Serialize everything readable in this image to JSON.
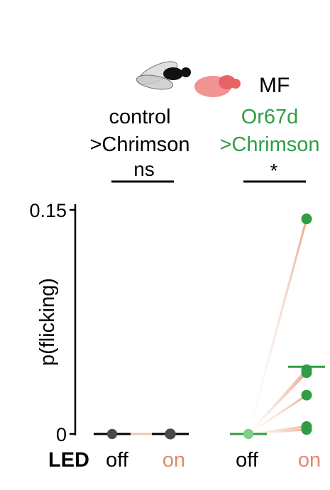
{
  "legend": {
    "label": "MF",
    "male_fly_icon": "black-fly-icon",
    "female_fly_icon": "red-fly-icon"
  },
  "groups": [
    {
      "line1": "control",
      "line2": ">Chrimson",
      "significance": "ns",
      "color": "#000000",
      "marker_color": "#4a4a4a"
    },
    {
      "line1": "Or67d",
      "line2": ">Chrimson",
      "significance": "*",
      "color": "#2e9e44",
      "marker_color": "#2e9e44"
    }
  ],
  "led_label": "LED",
  "conditions": [
    {
      "label": "off",
      "color": "#000000"
    },
    {
      "label": "on",
      "color": "#e08a6c"
    },
    {
      "label": "off",
      "color": "#000000"
    },
    {
      "label": "on",
      "color": "#e08a6c"
    }
  ],
  "colors": {
    "pair_line": "#e8a080",
    "axis": "#000000",
    "green": "#2e9e44",
    "light_green": "#7fcf8a"
  },
  "chart_data": {
    "type": "scatter",
    "ylabel": "p(flicking)",
    "ylim": [
      0,
      0.15
    ],
    "yticks": [
      0,
      0.15
    ],
    "ytick_labels": [
      "0",
      "0.15"
    ],
    "series": [
      {
        "group": "control >Chrimson",
        "off": [
          0,
          0,
          0,
          0,
          0
        ],
        "on": [
          0,
          0,
          0,
          0,
          0
        ],
        "mean_off": 0,
        "mean_on": 0
      },
      {
        "group": "Or67d >Chrimson",
        "off": [
          0,
          0,
          0,
          0,
          0,
          0
        ],
        "on": [
          0.144,
          0.043,
          0.041,
          0.026,
          0.005,
          0.003
        ],
        "mean_off": 0,
        "mean_on": 0.045
      }
    ]
  }
}
